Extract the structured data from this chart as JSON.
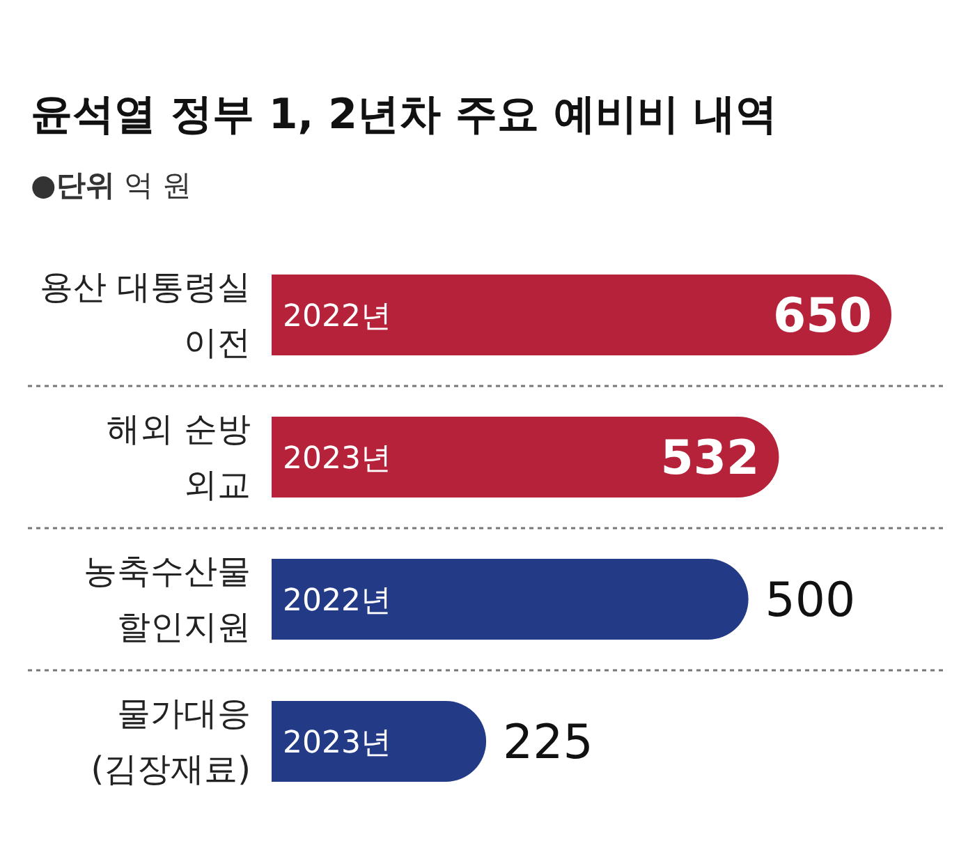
{
  "chart_data": {
    "type": "bar",
    "orientation": "horizontal",
    "title": "윤석열 정부 1, 2년차 주요 예비비 내역",
    "subtitle": "●**단위** 억 원",
    "categories": [
      "용산 대통령실 이전",
      "해외 순방 외교",
      "농축수산물 할인지원",
      "물가대응 (김장재료)"
    ],
    "series": [
      {
        "color": "#b5223a",
        "values": [
          650,
          532,
          null,
          null
        ]
      },
      {
        "color": "#233a86",
        "values": [
          null,
          null,
          500,
          225
        ]
      }
    ],
    "data_labels": true,
    "annotations": [
      "2022년",
      "2023년",
      "2022년",
      "2023년"
    ]
  }
}
